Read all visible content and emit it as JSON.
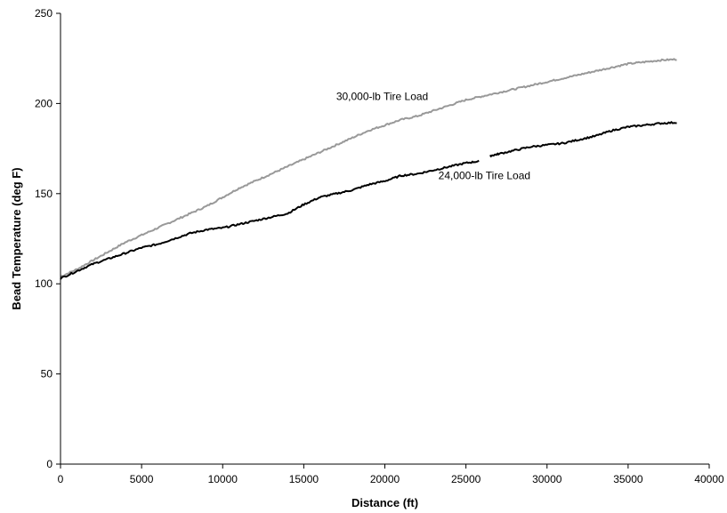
{
  "chart_data": {
    "type": "line",
    "xlabel": "Distance (ft)",
    "ylabel": "Bead Temperature (deg F)",
    "xlim": [
      0,
      40000
    ],
    "ylim": [
      0,
      250
    ],
    "x_ticks": [
      "0",
      "5000",
      "10000",
      "15000",
      "20000",
      "25000",
      "30000",
      "35000",
      "40000"
    ],
    "y_ticks": [
      "0",
      "50",
      "100",
      "150",
      "200",
      "250"
    ],
    "grid": false,
    "legend": "none",
    "annotations": [
      {
        "text": "30,000-lb Tire Load",
        "x": 17000,
        "y": 202
      },
      {
        "text": "24,000-lb Tire Load",
        "x": 23300,
        "y": 158
      }
    ],
    "series": [
      {
        "label": "30,000-lb Tire Load",
        "color": "#999999",
        "points": [
          [
            0,
            104
          ],
          [
            1000,
            108
          ],
          [
            2000,
            113
          ],
          [
            3000,
            118
          ],
          [
            4000,
            123
          ],
          [
            5000,
            127
          ],
          [
            6000,
            131
          ],
          [
            7000,
            135
          ],
          [
            8000,
            139
          ],
          [
            9000,
            143
          ],
          [
            10000,
            148
          ],
          [
            11000,
            153
          ],
          [
            12000,
            157
          ],
          [
            13000,
            161
          ],
          [
            14000,
            165
          ],
          [
            15000,
            169
          ],
          [
            16000,
            173
          ],
          [
            17000,
            177
          ],
          [
            18000,
            181
          ],
          [
            19000,
            185
          ],
          [
            20000,
            188
          ],
          [
            21000,
            191
          ],
          [
            22000,
            193
          ],
          [
            23000,
            196
          ],
          [
            24000,
            199
          ],
          [
            25000,
            202
          ],
          [
            26000,
            204
          ],
          [
            27000,
            206
          ],
          [
            28000,
            208
          ],
          [
            29000,
            210
          ],
          [
            30000,
            212
          ],
          [
            31000,
            214
          ],
          [
            32000,
            216
          ],
          [
            33000,
            218
          ],
          [
            34000,
            220
          ],
          [
            35000,
            222
          ],
          [
            36000,
            223
          ],
          [
            37000,
            224
          ],
          [
            38000,
            224.5
          ]
        ]
      },
      {
        "label": "24,000-lb Tire Load",
        "color": "#000000",
        "points": [
          [
            0,
            103
          ],
          [
            1000,
            107
          ],
          [
            2000,
            111
          ],
          [
            3000,
            114
          ],
          [
            4000,
            117
          ],
          [
            5000,
            120
          ],
          [
            6000,
            122
          ],
          [
            7000,
            125
          ],
          [
            8000,
            128
          ],
          [
            9000,
            130
          ],
          [
            10000,
            131
          ],
          [
            11000,
            133
          ],
          [
            12000,
            135
          ],
          [
            13000,
            137
          ],
          [
            14000,
            139
          ],
          [
            15000,
            144
          ],
          [
            16000,
            148
          ],
          [
            17000,
            150
          ],
          [
            18000,
            152
          ],
          [
            19000,
            155
          ],
          [
            20000,
            157
          ],
          [
            21000,
            160
          ],
          [
            22000,
            161
          ],
          [
            23000,
            163
          ],
          [
            24000,
            165
          ],
          [
            25000,
            167
          ],
          [
            25800,
            168
          ],
          null,
          [
            26500,
            171
          ],
          [
            27000,
            172
          ],
          [
            28000,
            174
          ],
          [
            29000,
            176
          ],
          [
            30000,
            177
          ],
          [
            31000,
            178
          ],
          [
            32000,
            180
          ],
          [
            33000,
            182
          ],
          [
            34000,
            185
          ],
          [
            35000,
            187
          ],
          [
            36000,
            188
          ],
          [
            37000,
            189
          ],
          [
            38000,
            189.5
          ]
        ]
      }
    ]
  }
}
